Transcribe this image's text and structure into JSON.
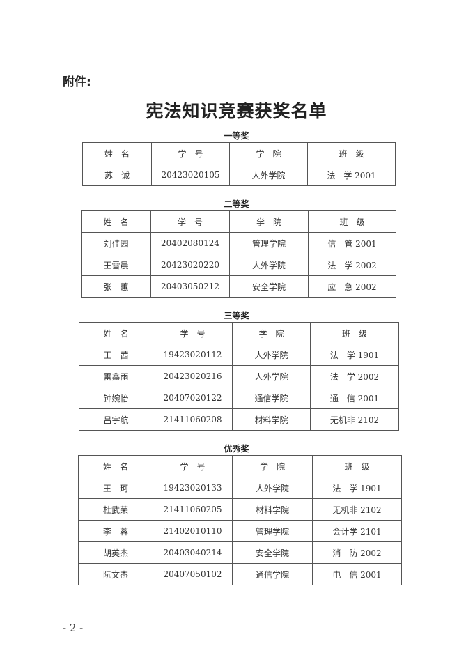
{
  "attachment_label": "附件:",
  "title": "宪法知识竞赛获奖名单",
  "headers": [
    "姓　名",
    "学　号",
    "学　院",
    "班　级"
  ],
  "sections": [
    {
      "title": "一等奖",
      "rows": [
        [
          "苏　诚",
          "20423020105",
          "人外学院",
          "法　学 2001"
        ]
      ]
    },
    {
      "title": "二等奖",
      "rows": [
        [
          "刘佳园",
          "20402080124",
          "管理学院",
          "信　管 2001"
        ],
        [
          "王雪晨",
          "20423020220",
          "人外学院",
          "法　学 2002"
        ],
        [
          "张　蕙",
          "20403050212",
          "安全学院",
          "应　急 2002"
        ]
      ]
    },
    {
      "title": "三等奖",
      "rows": [
        [
          "王　茜",
          "19423020112",
          "人外学院",
          "法　学 1901"
        ],
        [
          "雷鑫雨",
          "20423020216",
          "人外学院",
          "法　学 2002"
        ],
        [
          "钟婉怡",
          "20407020122",
          "通信学院",
          "通　信 2001"
        ],
        [
          "吕宇航",
          "21411060208",
          "材料学院",
          "无机非 2102"
        ]
      ]
    },
    {
      "title": "优秀奖",
      "rows": [
        [
          "王　珂",
          "19423020133",
          "人外学院",
          "法　学 1901"
        ],
        [
          "杜武荣",
          "21411060205",
          "材料学院",
          "无机非 2102"
        ],
        [
          "李　蓉",
          "21402010110",
          "管理学院",
          "会计学 2101"
        ],
        [
          "胡英杰",
          "20403040214",
          "安全学院",
          "消　防 2002"
        ],
        [
          "阮文杰",
          "20407050102",
          "通信学院",
          "电　信 2001"
        ]
      ]
    }
  ],
  "page_number": "- 2 -"
}
